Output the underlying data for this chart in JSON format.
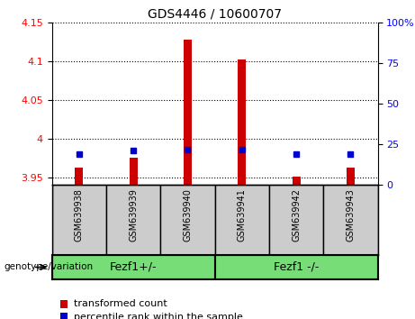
{
  "title": "GDS4446 / 10600707",
  "samples": [
    "GSM639938",
    "GSM639939",
    "GSM639940",
    "GSM639941",
    "GSM639942",
    "GSM639943"
  ],
  "transformed_counts": [
    3.963,
    3.975,
    4.128,
    4.102,
    3.951,
    3.963
  ],
  "percentile_ranks": [
    19,
    21,
    22,
    22,
    19,
    19
  ],
  "ylim_left": [
    3.94,
    4.15
  ],
  "ylim_right": [
    0,
    100
  ],
  "yticks_left": [
    3.95,
    4.0,
    4.05,
    4.1,
    4.15
  ],
  "yticks_right": [
    0,
    25,
    50,
    75,
    100
  ],
  "ytick_labels_left": [
    "3.95",
    "4",
    "4.05",
    "4.1",
    "4.15"
  ],
  "ytick_labels_right": [
    "0",
    "25",
    "50",
    "75",
    "100%"
  ],
  "bar_color": "#cc0000",
  "dot_color": "#0000cc",
  "baseline": 3.94,
  "group_label": "genotype/variation",
  "group1_label": "Fezf1+/-",
  "group2_label": "Fezf1 -/-",
  "legend_item1": "transformed count",
  "legend_item2": "percentile rank within the sample",
  "background_xlabel": "#cccccc",
  "background_group": "#77dd77",
  "title_fontsize": 10,
  "tick_fontsize": 8,
  "sample_fontsize": 7
}
